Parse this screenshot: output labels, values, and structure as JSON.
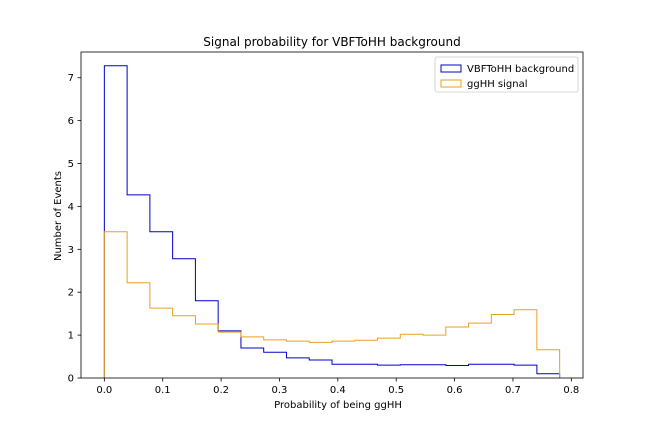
{
  "chart_data": {
    "type": "histogram",
    "title": "Signal probability for VBFToHH background",
    "xlabel": "Probability of being ggHH",
    "ylabel": "Number of Events",
    "xlim": [
      -0.04,
      0.82
    ],
    "ylim": [
      0,
      7.6
    ],
    "xticks": [
      0.0,
      0.1,
      0.2,
      0.3,
      0.4,
      0.5,
      0.6,
      0.7,
      0.8
    ],
    "xtick_labels": [
      "0.0",
      "0.1",
      "0.2",
      "0.3",
      "0.4",
      "0.5",
      "0.6",
      "0.7",
      "0.8"
    ],
    "yticks": [
      0,
      1,
      2,
      3,
      4,
      5,
      6,
      7
    ],
    "ytick_labels": [
      "0",
      "1",
      "2",
      "3",
      "4",
      "5",
      "6",
      "7"
    ],
    "grid": false,
    "legend_position": "top-right",
    "bin_edges": [
      0.0,
      0.039,
      0.078,
      0.117,
      0.156,
      0.195,
      0.234,
      0.273,
      0.312,
      0.351,
      0.39,
      0.429,
      0.468,
      0.507,
      0.546,
      0.585,
      0.624,
      0.663,
      0.702,
      0.741,
      0.78
    ],
    "series": [
      {
        "name": "VBFToHH background",
        "color": "#0000cc",
        "values": [
          7.28,
          4.27,
          3.41,
          2.78,
          1.8,
          1.1,
          0.7,
          0.6,
          0.47,
          0.42,
          0.32,
          0.32,
          0.3,
          0.31,
          0.31,
          0.29,
          0.32,
          0.32,
          0.3,
          0.1
        ]
      },
      {
        "name": "ggHH signal",
        "color": "#e8a020",
        "values": [
          3.41,
          2.22,
          1.63,
          1.45,
          1.26,
          1.07,
          0.96,
          0.89,
          0.86,
          0.83,
          0.86,
          0.88,
          0.93,
          1.02,
          1.0,
          1.19,
          1.28,
          1.48,
          1.59,
          0.66
        ]
      }
    ]
  }
}
